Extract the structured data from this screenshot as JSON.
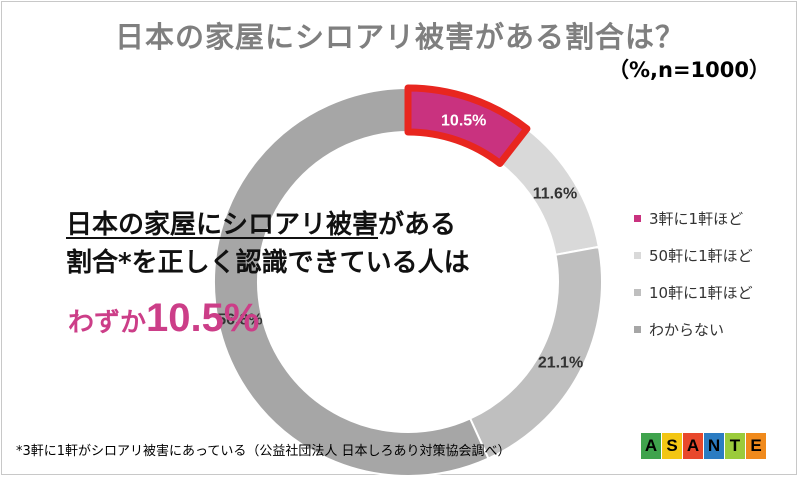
{
  "unit": "（%,n=1000）",
  "chart_data": {
    "type": "pie",
    "style": "donut",
    "title": "日本の家屋にシロアリ被害がある割合は？",
    "slices": [
      {
        "label": "3軒に1軒ほど",
        "value": 10.5,
        "display": "10.5%",
        "color": "#c9327f",
        "highlighted": true
      },
      {
        "label": "50軒に1軒ほど",
        "value": 11.6,
        "display": "11.6%",
        "color": "#d9d9d9"
      },
      {
        "label": "10軒に1軒ほど",
        "value": 21.1,
        "display": "21.1%",
        "color": "#bfbfbf"
      },
      {
        "label": "わからない",
        "value": 56.8,
        "display": "56.8%",
        "color": "#a6a6a6"
      }
    ],
    "legend_position": "right"
  },
  "highlight_color": "#e8261f",
  "headline": {
    "line1_underlined": "日本の家屋にシロアリ被害",
    "line1_rest": "がある",
    "line2": "割合*を正しく認識できている人は",
    "callout_prefix": "わずか",
    "callout_value": "10.5%"
  },
  "footnote": "*3軒に1軒がシロアリ被害にあっている（公益社団法人 日本しろあり対策協会調べ）",
  "logo": {
    "letters": [
      "A",
      "S",
      "A",
      "N",
      "T",
      "E"
    ],
    "colors": [
      "#3fa34d",
      "#f3c613",
      "#e8482c",
      "#2b7cc2",
      "#9bcb3b",
      "#f08a1c"
    ]
  }
}
